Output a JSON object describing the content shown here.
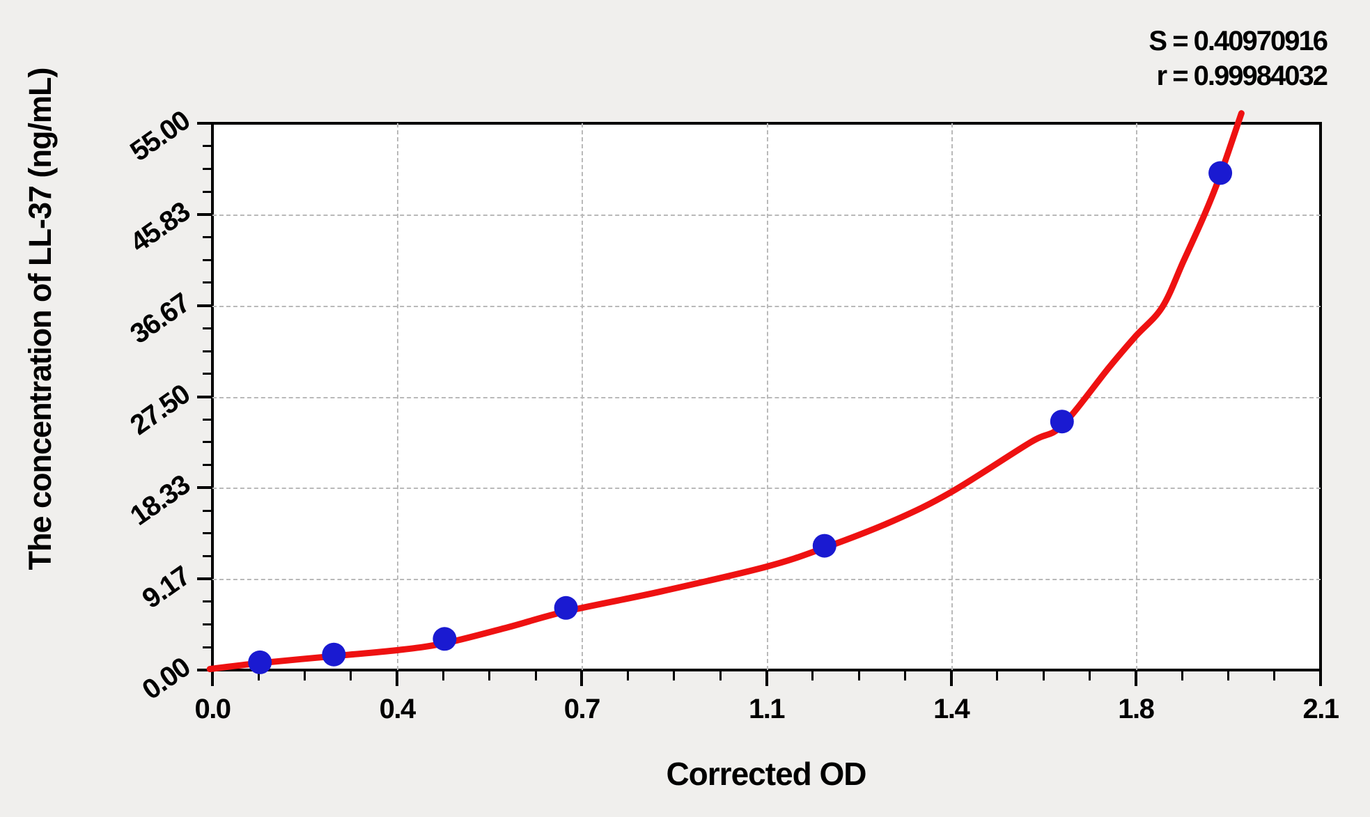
{
  "chart_data": {
    "type": "scatter",
    "title": "",
    "xlabel": "Corrected OD",
    "ylabel": "The concentration of LL-37 (ng/mL)",
    "annotations": {
      "s_line": "S = 0.40970916",
      "r_line": "r = 0.99984032"
    },
    "xlim": [
      0,
      2.1
    ],
    "ylim": [
      0,
      55
    ],
    "x_tick_values": [
      0,
      0.35,
      0.7,
      1.05,
      1.4,
      1.75,
      2.1
    ],
    "x_tick_labels": [
      "0.0",
      "0.4",
      "0.7",
      "1.1",
      "1.4",
      "1.8",
      "2.1"
    ],
    "y_tick_values": [
      0,
      9.17,
      18.33,
      27.5,
      36.67,
      45.83,
      55
    ],
    "y_tick_labels": [
      "0.00",
      "9.17",
      "18.33",
      "27.50",
      "36.67",
      "45.83",
      "55.00"
    ],
    "minor_divisions_per_major": 4,
    "grid": "major-dashed-both-axes",
    "legend": "none",
    "series": [
      {
        "name": "standard-points",
        "type": "scatter",
        "color": "#1a1ad1",
        "marker_radius_px": 17,
        "points": [
          {
            "x": 0.09,
            "y": 0.78
          },
          {
            "x": 0.23,
            "y": 1.56
          },
          {
            "x": 0.44,
            "y": 3.13
          },
          {
            "x": 0.67,
            "y": 6.25
          },
          {
            "x": 1.16,
            "y": 12.5
          },
          {
            "x": 1.61,
            "y": 25.0
          },
          {
            "x": 1.91,
            "y": 50.0
          }
        ]
      },
      {
        "name": "fitted-curve",
        "type": "line",
        "color": "#ee1111",
        "stroke_width_px": 9,
        "points": [
          {
            "x": -0.005,
            "y": 0.1
          },
          {
            "x": 0.09,
            "y": 0.7
          },
          {
            "x": 0.23,
            "y": 1.4
          },
          {
            "x": 0.35,
            "y": 2.0
          },
          {
            "x": 0.44,
            "y": 2.7
          },
          {
            "x": 0.56,
            "y": 4.3
          },
          {
            "x": 0.67,
            "y": 5.9
          },
          {
            "x": 0.85,
            "y": 7.9
          },
          {
            "x": 1.05,
            "y": 10.4
          },
          {
            "x": 1.16,
            "y": 12.3
          },
          {
            "x": 1.29,
            "y": 15.0
          },
          {
            "x": 1.4,
            "y": 17.9
          },
          {
            "x": 1.55,
            "y": 22.9
          },
          {
            "x": 1.61,
            "y": 24.6
          },
          {
            "x": 1.7,
            "y": 30.5
          },
          {
            "x": 1.75,
            "y": 33.6
          },
          {
            "x": 1.8,
            "y": 36.5
          },
          {
            "x": 1.84,
            "y": 41.1
          },
          {
            "x": 1.88,
            "y": 45.8
          },
          {
            "x": 1.91,
            "y": 49.8
          },
          {
            "x": 1.95,
            "y": 56.0
          }
        ]
      }
    ],
    "colors": {
      "background": "#f0efed",
      "plot_background": "#ffffff",
      "grid": "#b9b9b9",
      "axis": "#000000",
      "curve": "#ee1111",
      "points": "#1a1ad1",
      "text": "#000000"
    }
  }
}
